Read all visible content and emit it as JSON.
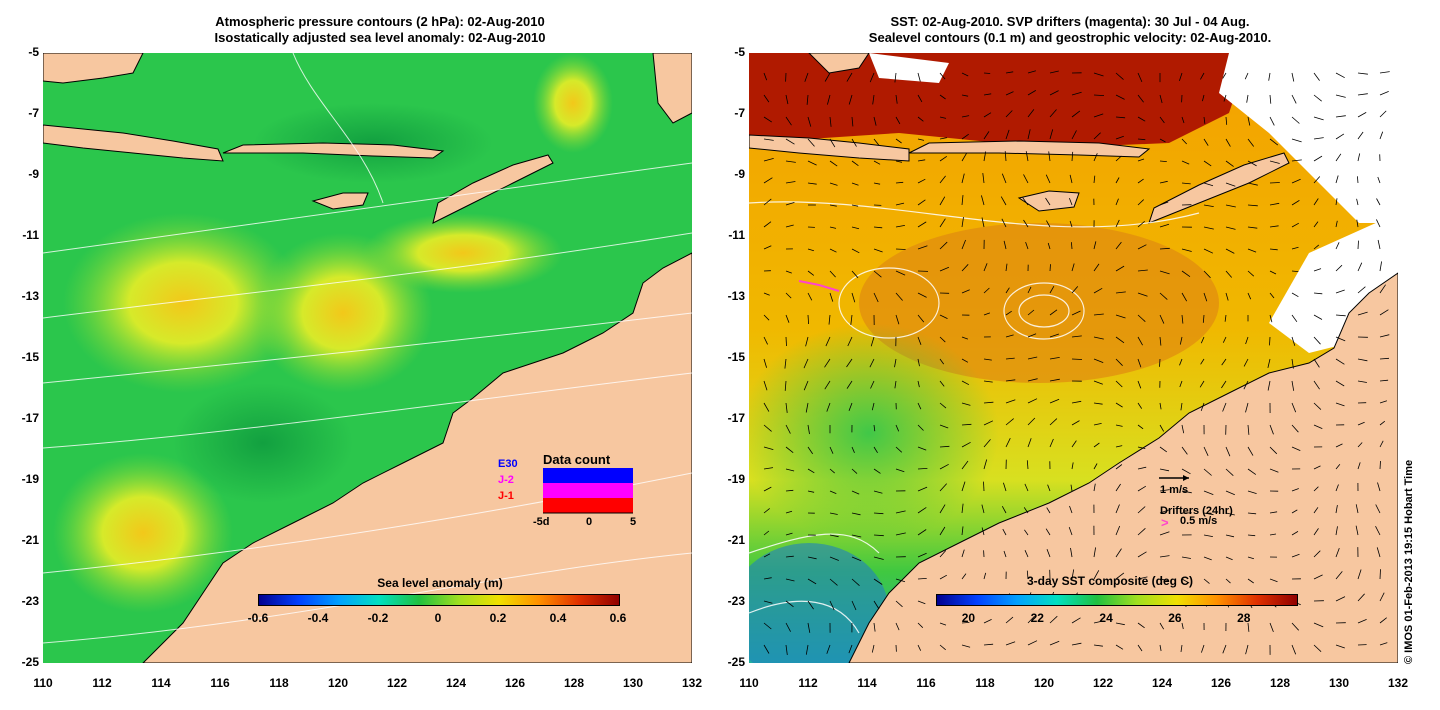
{
  "left_panel": {
    "title_line1": "Atmospheric pressure contours (2 hPa): 02-Aug-2010",
    "title_line2": "Isostatically adjusted sea level anomaly: 02-Aug-2010",
    "colorbar_label": "Sea level anomaly (m)",
    "colorbar_ticks": [
      "-0.6",
      "-0.4",
      "-0.2",
      "0",
      "0.2",
      "0.4",
      "0.6"
    ],
    "data_count_title": "Data count",
    "satellites": [
      {
        "label": "E30",
        "color": "#0000ff"
      },
      {
        "label": "J-2",
        "color": "#ff00ff"
      },
      {
        "label": "J-1",
        "color": "#ff0000"
      }
    ],
    "count_axis": [
      "-5d",
      "0",
      "5"
    ]
  },
  "right_panel": {
    "title_line1": "SST: 02-Aug-2010. SVP drifters (magenta): 30 Jul - 04 Aug.",
    "title_line2": "Sealevel contours (0.1 m) and geostrophic velocity: 02-Aug-2010.",
    "colorbar_label": "3-day SST composite (deg C)",
    "colorbar_ticks": [
      "20",
      "22",
      "24",
      "26",
      "28"
    ],
    "velocity_scale": "1 m/s",
    "drifters_label": "Drifters (24hr)",
    "drifter_scale_symbol": ">",
    "drifter_scale": "0.5 m/s"
  },
  "y_ticks": [
    "-5",
    "-7",
    "-9",
    "-11",
    "-13",
    "-15",
    "-17",
    "-19",
    "-21",
    "-23",
    "-25"
  ],
  "x_ticks": [
    "110",
    "112",
    "114",
    "116",
    "118",
    "120",
    "122",
    "124",
    "126",
    "128",
    "130",
    "132"
  ],
  "credit": "© IMOS 01-Feb-2013 19:15 Hobart Time",
  "colors": {
    "land": "#f7c7a0",
    "ocean_green": "#22c24a",
    "ocean_yellow": "#c8e830",
    "sst_orange": "#e89a10",
    "sst_red": "#b01a00",
    "cloud": "#ffffff",
    "drifter": "#ff44cc"
  }
}
